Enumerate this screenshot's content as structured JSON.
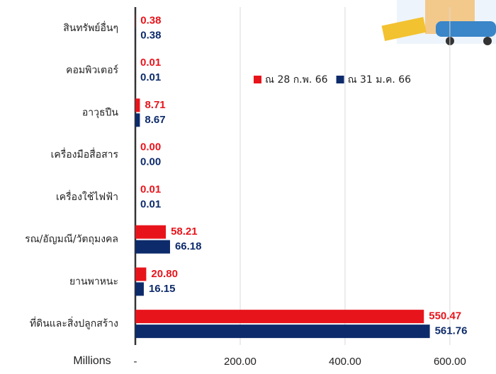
{
  "chart_data": {
    "type": "bar",
    "orientation": "horizontal",
    "categories": [
      "สินทรัพย์อื่นๆ",
      "คอมพิวเตอร์",
      "อาวุธปืน",
      "เครื่องมือสื่อสาร",
      "เครื่องใช้ไฟฟ้า",
      "รณ/อัญมณี/วัตถุมงคล",
      "ยานพาหนะ",
      "ที่ดินและสิ่งปลูกสร้าง"
    ],
    "series": [
      {
        "name": "ณ 28 ก.พ. 66",
        "color": "#e8141b",
        "values": [
          0.38,
          0.01,
          8.71,
          0,
          0.01,
          58.21,
          20.8,
          550.47
        ],
        "value_labels": [
          "0.38",
          "0.01",
          "8.71",
          "0.00",
          "0.01",
          "58.21",
          "20.80",
          "550.47"
        ]
      },
      {
        "name": "ณ 31 ม.ค. 66",
        "color": "#0d2b6b",
        "values": [
          0.38,
          0.01,
          8.67,
          0,
          0.01,
          66.18,
          16.15,
          561.76
        ],
        "value_labels": [
          "0.38",
          "0.01",
          "8.67",
          "0.00",
          "0.01",
          "66.18",
          "16.15",
          "561.76"
        ]
      }
    ],
    "xlabel": "Millions",
    "xlim": [
      0,
      688
    ],
    "xticks": [
      {
        "value": 0,
        "label": "-"
      },
      {
        "value": 200,
        "label": "200.00"
      },
      {
        "value": 400,
        "label": "400.00"
      },
      {
        "value": 600,
        "label": "600.00"
      }
    ],
    "grid": true
  }
}
